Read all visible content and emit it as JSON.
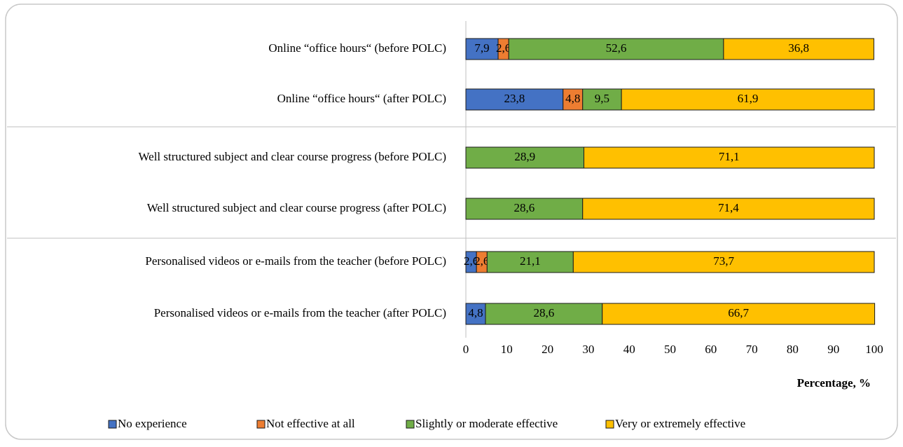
{
  "chart_data": {
    "type": "stacked-barh",
    "categories": [
      "Online “office hours“ (before POLC)",
      "Online “office hours“ (after POLC)",
      "Well structured subject and clear course progress (before POLC)",
      "Well structured subject and clear course progress (after POLC)",
      "Personalised videos or e-mails from the teacher (before POLC)",
      "Personalised videos or e-mails from the teacher (after POLC)"
    ],
    "series": [
      {
        "name": "No experience",
        "color": "#4472c4",
        "values": [
          7.9,
          23.8,
          null,
          null,
          2.6,
          4.8
        ],
        "value_labels": [
          "7,9",
          "23,8",
          null,
          null,
          "2,6",
          "4,8"
        ]
      },
      {
        "name": "Not effective at all",
        "color": "#ed7d31",
        "values": [
          2.6,
          4.8,
          null,
          null,
          2.6,
          null
        ],
        "value_labels": [
          "2,6",
          "4,8",
          null,
          null,
          "2,6",
          null
        ]
      },
      {
        "name": "Slightly or moderate effective",
        "color": "#70ad47",
        "values": [
          52.6,
          9.5,
          28.9,
          28.6,
          21.1,
          28.6
        ],
        "value_labels": [
          "52,6",
          "9,5",
          "28,9",
          "28,6",
          "21,1",
          "28,6"
        ]
      },
      {
        "name": "Very or extremely effective",
        "color": "#ffc000",
        "values": [
          36.8,
          61.9,
          71.1,
          71.4,
          73.7,
          66.7
        ],
        "value_labels": [
          "36,8",
          "61,9",
          "71,1",
          "71,4",
          "73,7",
          "66,7"
        ]
      }
    ],
    "xlabel": "Percentage, %",
    "xlim": [
      0,
      100
    ],
    "xticks": [
      0,
      10,
      20,
      30,
      40,
      50,
      60,
      70,
      80,
      90,
      100
    ],
    "legend": "bottom"
  }
}
